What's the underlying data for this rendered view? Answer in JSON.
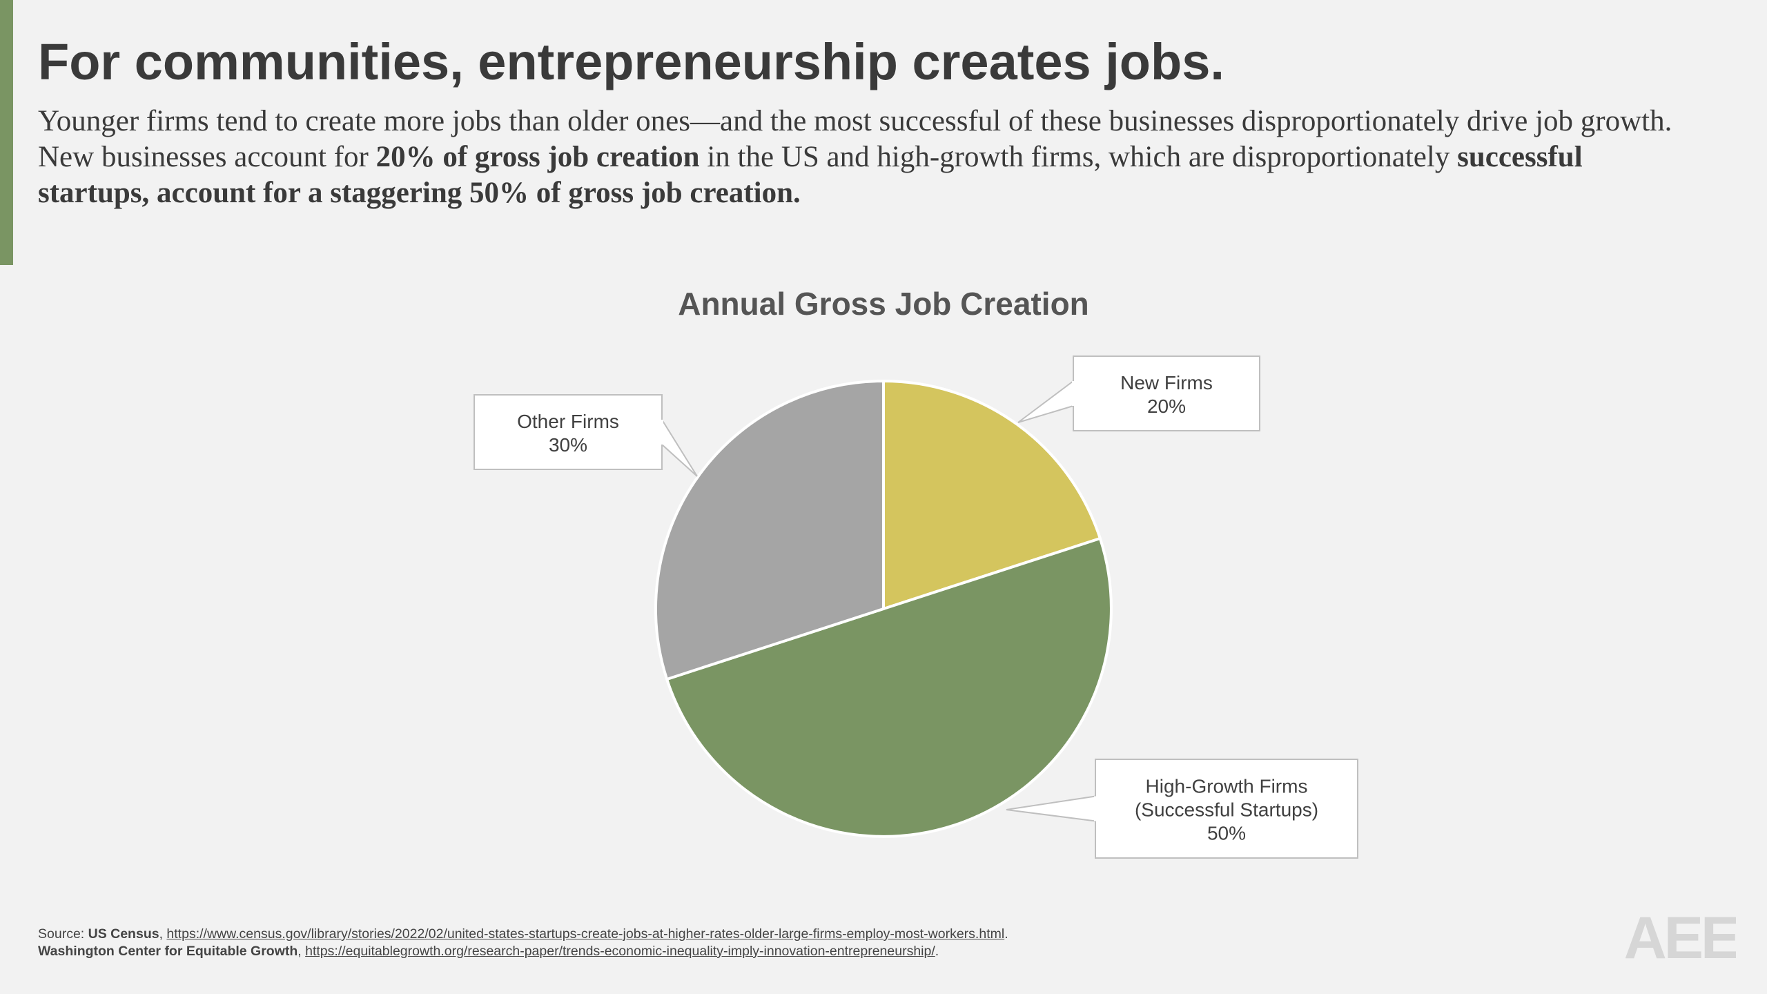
{
  "slide": {
    "title": "For communities, entrepreneurship creates jobs.",
    "body": {
      "p1": "Younger firms tend to create more jobs than older ones—and the most successful of these businesses disproportionately drive job growth. New businesses account for ",
      "b1": "20% of gross job creation",
      "p2": " in the US and high-growth firms, which are disproportionately ",
      "b2": "successful startups, account for a staggering 50% of gross job creation."
    }
  },
  "chart_data": {
    "type": "pie",
    "title": "Annual Gross Job Creation",
    "slices": [
      {
        "name": "New Firms",
        "label_lines": [
          "New Firms"
        ],
        "value": 20,
        "value_label": "20%",
        "color": "#d4c55e"
      },
      {
        "name": "High-Growth Firms (Successful Startups)",
        "label_lines": [
          "High-Growth Firms",
          "(Successful Startups)"
        ],
        "value": 50,
        "value_label": "50%",
        "color": "#7a9563"
      },
      {
        "name": "Other Firms",
        "label_lines": [
          "Other Firms"
        ],
        "value": 30,
        "value_label": "30%",
        "color": "#a5a5a5"
      }
    ],
    "legend": "none"
  },
  "footer": {
    "source_prefix": "Source: ",
    "source1_name": "US Census",
    "sep1": ", ",
    "source1_url": "https://www.census.gov/library/stories/2022/02/united-states-startups-create-jobs-at-higher-rates-older-large-firms-employ-most-workers.html",
    "sep2": ". ",
    "source2_name": "Washington Center for Equitable Growth",
    "sep3": ", ",
    "source2_url": "https://equitablegrowth.org/research-paper/trends-economic-inequality-imply-innovation-entrepreneurship/",
    "end": ".",
    "logo_text": "AEE",
    "logo_color": "#d6d6d6"
  },
  "colors": {
    "accent": "#7a9563",
    "background": "#f2f2f2",
    "text": "#3a3a3a"
  }
}
